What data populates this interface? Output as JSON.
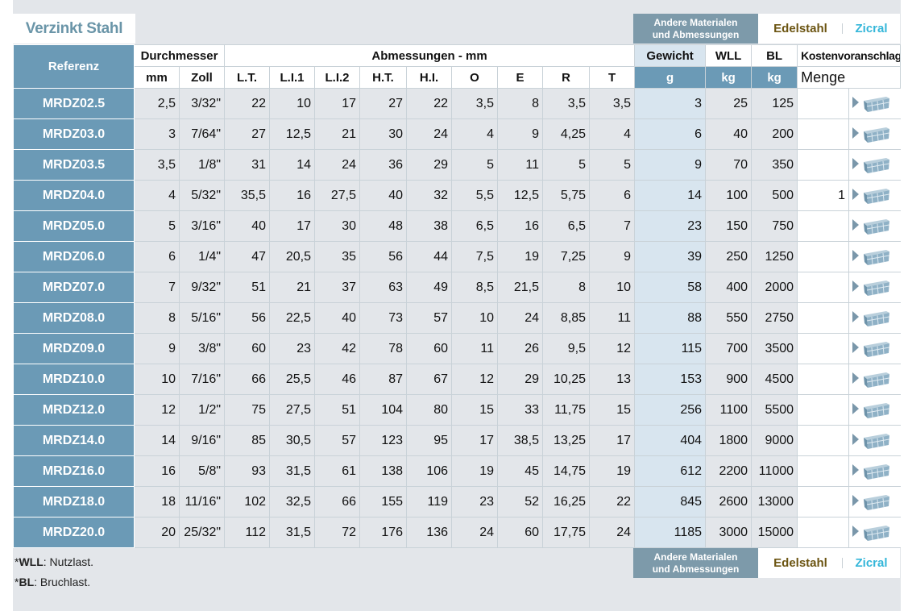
{
  "title": "Verzinkt Stahl",
  "materials": {
    "other_line1": "Andere Materialen",
    "other_line2": "und Abmessungen",
    "edelstahl": "Edelstahl",
    "zicral": "Zicral"
  },
  "headers": {
    "referenz": "Referenz",
    "durchmesser": "Durchmesser",
    "abmessungen": "Abmessungen - mm",
    "gewicht": "Gewicht",
    "wll": "WLL",
    "bl": "BL",
    "kostenvoranschlag": "Kostenvoranschlag",
    "sub": [
      "mm",
      "Zoll",
      "L.T.",
      "L.I.1",
      "L.I.2",
      "H.T.",
      "H.I.",
      "O",
      "E",
      "R",
      "T"
    ],
    "unit_g": "g",
    "unit_kg1": "kg",
    "unit_kg2": "kg",
    "menge": "Menge"
  },
  "rows": [
    {
      "ref": "MRDZ02.5",
      "mm": "2,5",
      "zoll": "3/32\"",
      "lt": "22",
      "li1": "10",
      "li2": "17",
      "ht": "27",
      "hi": "22",
      "o": "3,5",
      "e": "8",
      "r": "3,5",
      "t": "3,5",
      "g": "3",
      "wll": "25",
      "bl": "125",
      "qty": ""
    },
    {
      "ref": "MRDZ03.0",
      "mm": "3",
      "zoll": "7/64\"",
      "lt": "27",
      "li1": "12,5",
      "li2": "21",
      "ht": "30",
      "hi": "24",
      "o": "4",
      "e": "9",
      "r": "4,25",
      "t": "4",
      "g": "6",
      "wll": "40",
      "bl": "200",
      "qty": ""
    },
    {
      "ref": "MRDZ03.5",
      "mm": "3,5",
      "zoll": "1/8\"",
      "lt": "31",
      "li1": "14",
      "li2": "24",
      "ht": "36",
      "hi": "29",
      "o": "5",
      "e": "11",
      "r": "5",
      "t": "5",
      "g": "9",
      "wll": "70",
      "bl": "350",
      "qty": ""
    },
    {
      "ref": "MRDZ04.0",
      "mm": "4",
      "zoll": "5/32\"",
      "lt": "35,5",
      "li1": "16",
      "li2": "27,5",
      "ht": "40",
      "hi": "32",
      "o": "5,5",
      "e": "12,5",
      "r": "5,75",
      "t": "6",
      "g": "14",
      "wll": "100",
      "bl": "500",
      "qty": "1"
    },
    {
      "ref": "MRDZ05.0",
      "mm": "5",
      "zoll": "3/16\"",
      "lt": "40",
      "li1": "17",
      "li2": "30",
      "ht": "48",
      "hi": "38",
      "o": "6,5",
      "e": "16",
      "r": "6,5",
      "t": "7",
      "g": "23",
      "wll": "150",
      "bl": "750",
      "qty": ""
    },
    {
      "ref": "MRDZ06.0",
      "mm": "6",
      "zoll": "1/4\"",
      "lt": "47",
      "li1": "20,5",
      "li2": "35",
      "ht": "56",
      "hi": "44",
      "o": "7,5",
      "e": "19",
      "r": "7,25",
      "t": "9",
      "g": "39",
      "wll": "250",
      "bl": "1250",
      "qty": ""
    },
    {
      "ref": "MRDZ07.0",
      "mm": "7",
      "zoll": "9/32\"",
      "lt": "51",
      "li1": "21",
      "li2": "37",
      "ht": "63",
      "hi": "49",
      "o": "8,5",
      "e": "21,5",
      "r": "8",
      "t": "10",
      "g": "58",
      "wll": "400",
      "bl": "2000",
      "qty": ""
    },
    {
      "ref": "MRDZ08.0",
      "mm": "8",
      "zoll": "5/16\"",
      "lt": "56",
      "li1": "22,5",
      "li2": "40",
      "ht": "73",
      "hi": "57",
      "o": "10",
      "e": "24",
      "r": "8,85",
      "t": "11",
      "g": "88",
      "wll": "550",
      "bl": "2750",
      "qty": ""
    },
    {
      "ref": "MRDZ09.0",
      "mm": "9",
      "zoll": "3/8\"",
      "lt": "60",
      "li1": "23",
      "li2": "42",
      "ht": "78",
      "hi": "60",
      "o": "11",
      "e": "26",
      "r": "9,5",
      "t": "12",
      "g": "115",
      "wll": "700",
      "bl": "3500",
      "qty": ""
    },
    {
      "ref": "MRDZ10.0",
      "mm": "10",
      "zoll": "7/16\"",
      "lt": "66",
      "li1": "25,5",
      "li2": "46",
      "ht": "87",
      "hi": "67",
      "o": "12",
      "e": "29",
      "r": "10,25",
      "t": "13",
      "g": "153",
      "wll": "900",
      "bl": "4500",
      "qty": ""
    },
    {
      "ref": "MRDZ12.0",
      "mm": "12",
      "zoll": "1/2\"",
      "lt": "75",
      "li1": "27,5",
      "li2": "51",
      "ht": "104",
      "hi": "80",
      "o": "15",
      "e": "33",
      "r": "11,75",
      "t": "15",
      "g": "256",
      "wll": "1100",
      "bl": "5500",
      "qty": ""
    },
    {
      "ref": "MRDZ14.0",
      "mm": "14",
      "zoll": "9/16\"",
      "lt": "85",
      "li1": "30,5",
      "li2": "57",
      "ht": "123",
      "hi": "95",
      "o": "17",
      "e": "38,5",
      "r": "13,25",
      "t": "17",
      "g": "404",
      "wll": "1800",
      "bl": "9000",
      "qty": ""
    },
    {
      "ref": "MRDZ16.0",
      "mm": "16",
      "zoll": "5/8\"",
      "lt": "93",
      "li1": "31,5",
      "li2": "61",
      "ht": "138",
      "hi": "106",
      "o": "19",
      "e": "45",
      "r": "14,75",
      "t": "19",
      "g": "612",
      "wll": "2200",
      "bl": "11000",
      "qty": ""
    },
    {
      "ref": "MRDZ18.0",
      "mm": "18",
      "zoll": "11/16\"",
      "lt": "102",
      "li1": "32,5",
      "li2": "66",
      "ht": "155",
      "hi": "119",
      "o": "23",
      "e": "52",
      "r": "16,25",
      "t": "22",
      "g": "845",
      "wll": "2600",
      "bl": "13000",
      "qty": ""
    },
    {
      "ref": "MRDZ20.0",
      "mm": "20",
      "zoll": "25/32\"",
      "lt": "112",
      "li1": "31,5",
      "li2": "72",
      "ht": "176",
      "hi": "136",
      "o": "24",
      "e": "60",
      "r": "17,75",
      "t": "24",
      "g": "1185",
      "wll": "3000",
      "bl": "15000",
      "qty": ""
    }
  ],
  "notes": {
    "wll_prefix": "*",
    "wll_key": "WLL",
    "wll_text": ": Nutzlast.",
    "bl_prefix": "*",
    "bl_key": "BL",
    "bl_text": ": Bruchlast."
  },
  "colors": {
    "ref_blue": "#6b9ab6",
    "weight_bg": "#d8e5ef",
    "edelstahl": "#6b5411",
    "zicral": "#34b6d9",
    "qty_text": "#8b3a20"
  },
  "icons": {
    "cart": "add-to-cart-icon",
    "arrow": "play-arrow-icon"
  }
}
